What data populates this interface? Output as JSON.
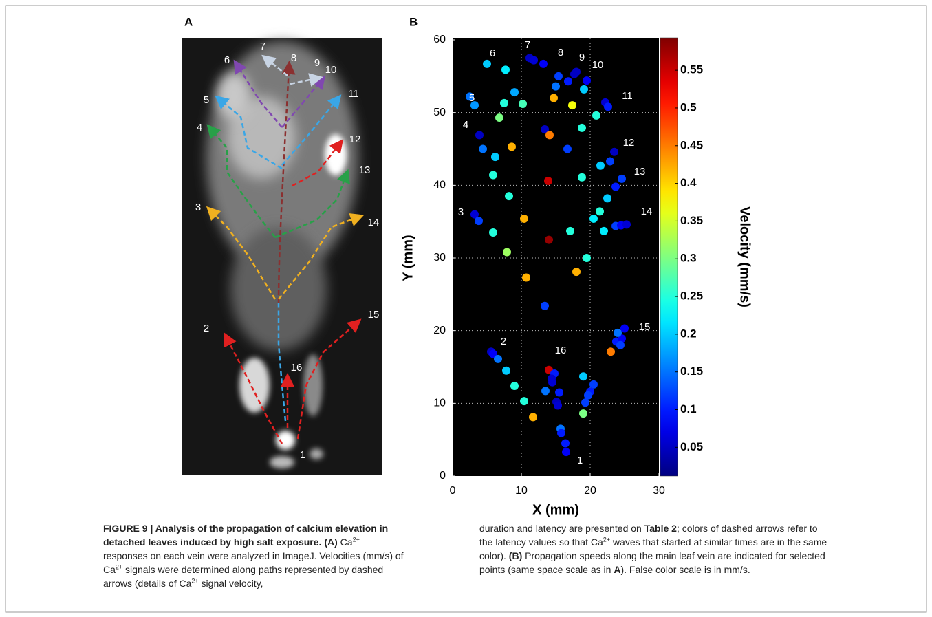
{
  "panel_labels": [
    "A",
    "B"
  ],
  "panel_a": {
    "labels": [
      "1",
      "2",
      "3",
      "4",
      "5",
      "6",
      "7",
      "8",
      "9",
      "10",
      "11",
      "12",
      "13",
      "14",
      "15",
      "16"
    ]
  },
  "chart_data": {
    "type": "scatter",
    "xlabel": "X (mm)",
    "ylabel": "Y (mm)",
    "xlim": [
      0,
      30
    ],
    "xticks": [
      0,
      10,
      20,
      30
    ],
    "ylim": [
      0,
      60
    ],
    "yticks": [
      0,
      10,
      20,
      30,
      40,
      50,
      60
    ],
    "grid": true,
    "background": "#000000",
    "colormap": "jet",
    "colorbar_label": "Velocity (mm/s)",
    "clim": [
      0.012,
      0.593
    ],
    "cticks": [
      0.05,
      0.1,
      0.15,
      0.2,
      0.25,
      0.3,
      0.35,
      0.4,
      0.45,
      0.5,
      0.55
    ],
    "annotations": [
      "1",
      "2",
      "3",
      "4",
      "5",
      "6",
      "7",
      "8",
      "9",
      "10",
      "11",
      "12",
      "13",
      "14",
      "15",
      "16"
    ],
    "x": [
      5.0,
      7.7,
      11.2,
      11.8,
      13.2,
      15.4,
      15.0,
      16.8,
      17.7,
      18.0,
      19.5,
      19.1,
      2.5,
      3.2,
      9.0,
      7.5,
      10.2,
      14.7,
      17.4,
      22.2,
      22.6,
      20.9,
      6.8,
      13.4,
      14.1,
      18.8,
      3.9,
      4.4,
      6.2,
      8.6,
      16.7,
      23.5,
      22.9,
      21.5,
      18.8,
      5.9,
      13.9,
      8.2,
      24.6,
      23.7,
      22.5,
      21.4,
      20.5,
      17.1,
      22.0,
      23.7,
      24.5,
      25.3,
      3.2,
      3.8,
      10.4,
      5.9,
      14.0,
      7.9,
      19.5,
      18.0,
      10.7,
      13.4,
      23.8,
      24.6,
      25.0,
      24.0,
      24.4,
      23.0,
      5.6,
      5.9,
      6.6,
      7.8,
      9.0,
      10.4,
      11.7,
      14.0,
      14.8,
      14.5,
      14.4,
      13.5,
      15.5,
      15.1,
      15.3,
      19.0,
      20.5,
      20.0,
      19.7,
      19.3,
      19.0,
      15.7,
      15.8,
      16.4,
      16.5
    ],
    "y": [
      56.7,
      55.9,
      57.5,
      57.2,
      56.7,
      55.0,
      53.6,
      54.3,
      55.3,
      55.6,
      54.4,
      53.2,
      52.2,
      51.0,
      52.8,
      51.3,
      51.2,
      52.0,
      51.0,
      51.4,
      50.8,
      49.6,
      49.3,
      47.7,
      46.9,
      47.9,
      46.9,
      45.0,
      43.9,
      45.3,
      45.0,
      44.6,
      43.3,
      42.7,
      41.1,
      41.4,
      40.6,
      38.5,
      40.9,
      39.8,
      38.2,
      36.4,
      35.4,
      33.7,
      33.7,
      34.4,
      34.5,
      34.6,
      36.0,
      35.1,
      35.4,
      33.5,
      32.5,
      30.8,
      30.0,
      28.1,
      27.3,
      23.4,
      18.5,
      18.9,
      20.3,
      19.7,
      18.0,
      17.1,
      17.1,
      16.8,
      16.1,
      14.5,
      12.4,
      10.3,
      8.1,
      14.6,
      14.1,
      12.9,
      13.4,
      11.7,
      11.5,
      10.2,
      9.7,
      13.7,
      12.6,
      11.6,
      11.1,
      10.1,
      8.6,
      6.5,
      5.9,
      4.5,
      3.3
    ],
    "color_values": [
      0.2,
      0.22,
      0.05,
      0.06,
      0.08,
      0.12,
      0.15,
      0.1,
      0.05,
      0.05,
      0.08,
      0.2,
      0.15,
      0.17,
      0.18,
      0.25,
      0.27,
      0.42,
      0.37,
      0.06,
      0.1,
      0.25,
      0.3,
      0.05,
      0.45,
      0.25,
      0.05,
      0.15,
      0.2,
      0.42,
      0.12,
      0.05,
      0.12,
      0.2,
      0.25,
      0.25,
      0.55,
      0.25,
      0.12,
      0.1,
      0.2,
      0.25,
      0.22,
      0.25,
      0.22,
      0.12,
      0.08,
      0.06,
      0.06,
      0.12,
      0.42,
      0.25,
      0.58,
      0.32,
      0.25,
      0.42,
      0.42,
      0.12,
      0.1,
      0.08,
      0.08,
      0.15,
      0.12,
      0.45,
      0.05,
      0.08,
      0.15,
      0.2,
      0.25,
      0.25,
      0.42,
      0.55,
      0.1,
      0.06,
      0.06,
      0.15,
      0.1,
      0.05,
      0.06,
      0.2,
      0.12,
      0.1,
      0.12,
      0.12,
      0.3,
      0.15,
      0.1,
      0.1,
      0.08
    ]
  },
  "caption": {
    "left": [
      {
        "t": "FIGURE 9 | Analysis of the propagation of calcium elevation in detached leaves induced by high salt exposure. (A) ",
        "s": "b"
      },
      {
        "t": "Ca",
        "s": "n"
      },
      {
        "t": "2+",
        "s": "sup"
      },
      {
        "t": " responses on each vein were analyzed in ImageJ. Velocities (mm/s) of ",
        "s": "n"
      },
      {
        "t": "Ca",
        "s": "n"
      },
      {
        "t": "2+",
        "s": "sup"
      },
      {
        "t": " signals were determined along paths represented by dashed arrows (details of ",
        "s": "n"
      },
      {
        "t": "Ca",
        "s": "n"
      },
      {
        "t": "2+",
        "s": "sup"
      },
      {
        "t": " signal velocity,",
        "s": "n"
      }
    ],
    "right": [
      {
        "t": "duration and latency are presented on ",
        "s": "n"
      },
      {
        "t": "Table 2",
        "s": "b"
      },
      {
        "t": "; colors of dashed arrows refer to the latency values so that ",
        "s": "n"
      },
      {
        "t": "Ca",
        "s": "n"
      },
      {
        "t": "2+",
        "s": "sup"
      },
      {
        "t": " waves that started at similar times are in the same color). ",
        "s": "n"
      },
      {
        "t": "(B)",
        "s": "b"
      },
      {
        "t": " Propagation speeds along the main leaf vein are indicated for selected points (same space scale as in ",
        "s": "n"
      },
      {
        "t": "A",
        "s": "b"
      },
      {
        "t": "). False color scale is in mm/s.",
        "s": "n"
      }
    ]
  }
}
